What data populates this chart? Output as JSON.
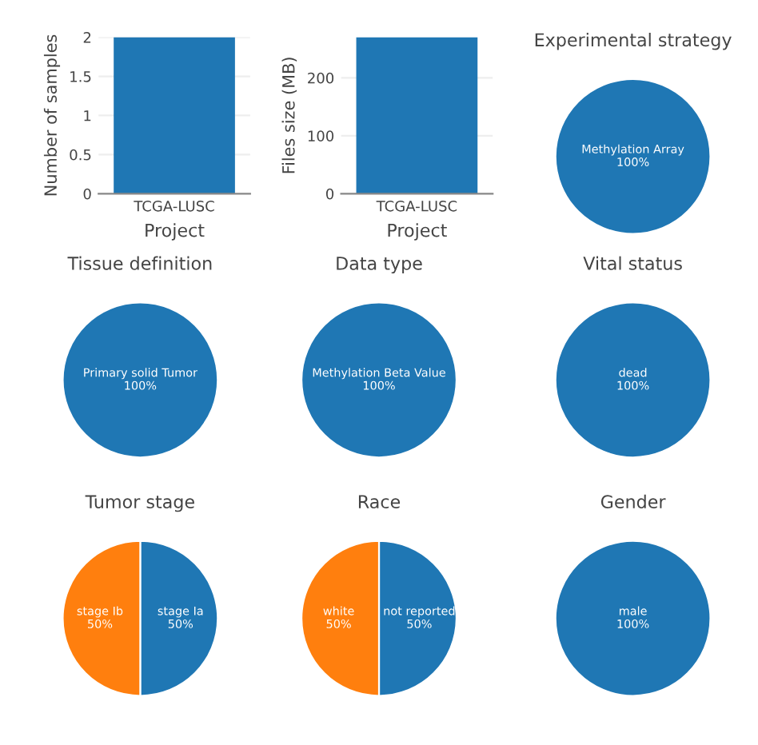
{
  "chart_data": [
    {
      "type": "bar",
      "categories": [
        "TCGA-LUSC"
      ],
      "values": [
        2
      ],
      "color": "#1f77b4",
      "xlabel": "Project",
      "ylabel": "Number of samples",
      "ylim": [
        0,
        2
      ],
      "yticks": [
        0,
        0.5,
        1,
        1.5,
        2
      ],
      "grid": "y"
    },
    {
      "type": "bar",
      "categories": [
        "TCGA-LUSC"
      ],
      "values": [
        270
      ],
      "color": "#1f77b4",
      "xlabel": "Project",
      "ylabel": "Files size (MB)",
      "ylim": [
        0,
        270
      ],
      "yticks": [
        0,
        100,
        200
      ],
      "grid": "y"
    },
    {
      "type": "pie",
      "title": "Experimental strategy",
      "categories": [
        "Methylation Array"
      ],
      "values": [
        100
      ],
      "colors": [
        "#1f77b4"
      ],
      "value_labels": [
        "100%"
      ]
    },
    {
      "type": "pie",
      "title": "Tissue definition",
      "categories": [
        "Primary solid Tumor"
      ],
      "values": [
        100
      ],
      "colors": [
        "#1f77b4"
      ],
      "value_labels": [
        "100%"
      ]
    },
    {
      "type": "pie",
      "title": "Data type",
      "categories": [
        "Methylation Beta Value"
      ],
      "values": [
        100
      ],
      "colors": [
        "#1f77b4"
      ],
      "value_labels": [
        "100%"
      ]
    },
    {
      "type": "pie",
      "title": "Vital status",
      "categories": [
        "dead"
      ],
      "values": [
        100
      ],
      "colors": [
        "#1f77b4"
      ],
      "value_labels": [
        "100%"
      ]
    },
    {
      "type": "pie",
      "title": "Tumor stage",
      "categories": [
        "stage Ia",
        "stage Ib"
      ],
      "values": [
        50,
        50
      ],
      "colors": [
        "#1f77b4",
        "#ff7f0e"
      ],
      "value_labels": [
        "50%",
        "50%"
      ]
    },
    {
      "type": "pie",
      "title": "Race",
      "categories": [
        "not reported",
        "white"
      ],
      "values": [
        50,
        50
      ],
      "colors": [
        "#1f77b4",
        "#ff7f0e"
      ],
      "value_labels": [
        "50%",
        "50%"
      ]
    },
    {
      "type": "pie",
      "title": "Gender",
      "categories": [
        "male"
      ],
      "values": [
        100
      ],
      "colors": [
        "#1f77b4"
      ],
      "value_labels": [
        "100%"
      ]
    }
  ]
}
